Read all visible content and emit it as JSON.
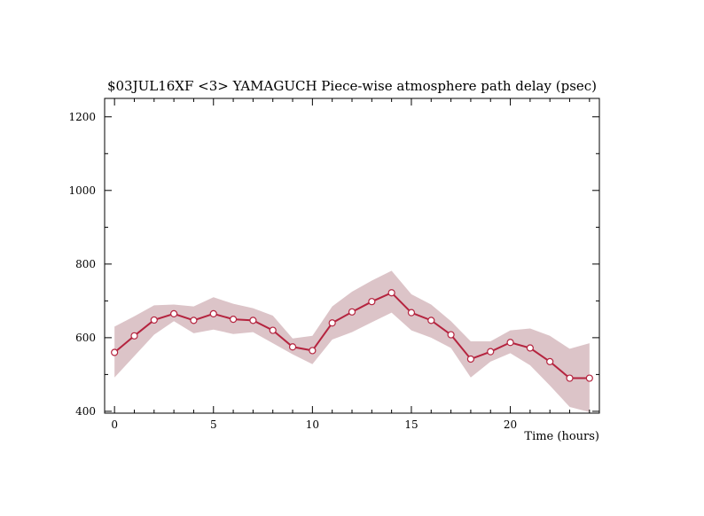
{
  "chart_data": {
    "type": "line",
    "title": "$03JUL16XF <3>  YAMAGUCH  Piece-wise atmosphere path delay (psec)",
    "xlabel": "Time (hours)",
    "ylabel": "",
    "xlim": [
      -0.5,
      24.5
    ],
    "ylim": [
      395,
      1250
    ],
    "x_ticks": [
      0,
      5,
      10,
      15,
      20
    ],
    "y_ticks": [
      400,
      600,
      800,
      1000,
      1200
    ],
    "grid": false,
    "legend": "none",
    "colors": {
      "line": "#b5243f",
      "band": "#dcc4c8",
      "marker_fill": "#ffffff"
    },
    "x": [
      0,
      1,
      2,
      3,
      4,
      5,
      6,
      7,
      8,
      9,
      10,
      11,
      12,
      13,
      14,
      15,
      16,
      17,
      18,
      19,
      20,
      21,
      22,
      23,
      24
    ],
    "series": [
      {
        "values": [
          560,
          605,
          648,
          665,
          647,
          665,
          650,
          647,
          620,
          575,
          565,
          640,
          670,
          698,
          722,
          668,
          647,
          608,
          542,
          562,
          587,
          572,
          535,
          490,
          490
        ],
        "upper": [
          630,
          658,
          688,
          690,
          685,
          710,
          692,
          680,
          660,
          598,
          605,
          685,
          725,
          755,
          782,
          718,
          690,
          645,
          590,
          590,
          620,
          625,
          605,
          570,
          585
        ],
        "lower": [
          492,
          550,
          608,
          645,
          612,
          622,
          610,
          615,
          585,
          555,
          528,
          595,
          615,
          642,
          668,
          620,
          600,
          572,
          492,
          535,
          558,
          525,
          470,
          412,
          398
        ]
      }
    ]
  }
}
